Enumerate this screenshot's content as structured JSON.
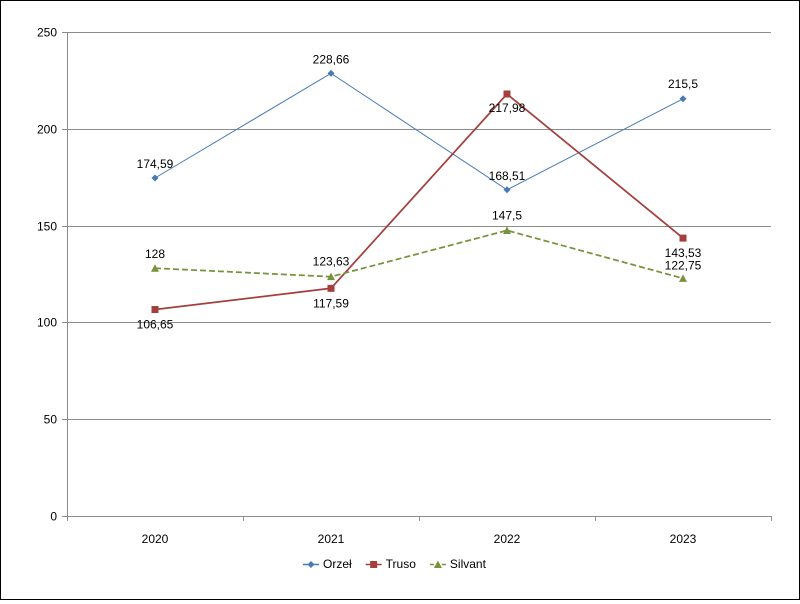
{
  "chart_data": {
    "type": "line",
    "title": "",
    "xlabel": "",
    "ylabel": "",
    "categories": [
      "2020",
      "2021",
      "2022",
      "2023"
    ],
    "ylim": [
      0,
      250
    ],
    "yticks": [
      "0",
      "50",
      "100",
      "150",
      "200",
      "250"
    ],
    "grid": "horizontal",
    "legend_position": "bottom",
    "series": [
      {
        "name": "Orzeł",
        "values": [
          174.59,
          228.66,
          168.51,
          215.5
        ],
        "labels": [
          "174,59",
          "228,66",
          "168,51",
          "215,5"
        ],
        "color": "#4a7ab5",
        "marker": "diamond",
        "dash": "solid"
      },
      {
        "name": "Truso",
        "values": [
          106.65,
          117.59,
          217.98,
          143.53
        ],
        "labels": [
          "106,65",
          "117,59",
          "217,98",
          "143,53"
        ],
        "color": "#a3403d",
        "marker": "square",
        "dash": "solid"
      },
      {
        "name": "Silvant",
        "values": [
          128,
          123.63,
          147.5,
          122.75
        ],
        "labels": [
          "128",
          "123,63",
          "147,5",
          "122,75"
        ],
        "color": "#77933c",
        "marker": "triangle",
        "dash": "dashed"
      }
    ]
  }
}
